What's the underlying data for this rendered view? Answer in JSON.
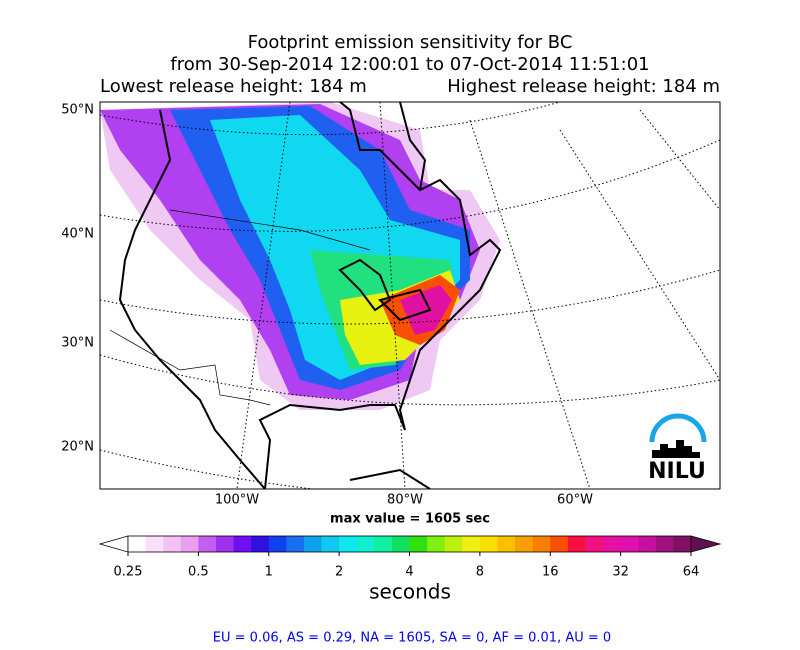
{
  "title": [
    "Footprint emission sensitivity for BC",
    "from 30-Sep-2014 12:00:01 to 07-Oct-2014 11:51:01"
  ],
  "release": {
    "lowest": "Lowest release height: 184 m",
    "highest": "Highest release height: 184 m"
  },
  "lat_labels": [
    "50°N",
    "40°N",
    "30°N",
    "20°N"
  ],
  "lon_labels": [
    "100°W",
    "80°W",
    "60°W"
  ],
  "max_value": "max value = 1605 sec",
  "colorbar": {
    "ticks": [
      0.25,
      0.5,
      1,
      2,
      4,
      8,
      16,
      32,
      64
    ],
    "label": "seconds",
    "under": "#ffffff",
    "over": "#601050",
    "colors": [
      "#ffffff",
      "#fbe0fb",
      "#f5c0f5",
      "#eaa0f0",
      "#c060f0",
      "#a030f0",
      "#7010f0",
      "#3010e0",
      "#1040f0",
      "#1870f0",
      "#10a0f0",
      "#10c8f0",
      "#10e8f0",
      "#10f0d0",
      "#10f0a0",
      "#10e060",
      "#30e010",
      "#80f010",
      "#c0f010",
      "#f0f010",
      "#f8e000",
      "#f8c000",
      "#f8a000",
      "#f88000",
      "#f85000",
      "#f81040",
      "#f01080",
      "#e810a0",
      "#e010b0",
      "#c810a0",
      "#a01080",
      "#801060"
    ]
  },
  "logo": "NILU",
  "footer": "EU = 0.06,  AS = 0.29,  NA = 1605,  SA = 0,  AF = 0.01,  AU = 0"
}
